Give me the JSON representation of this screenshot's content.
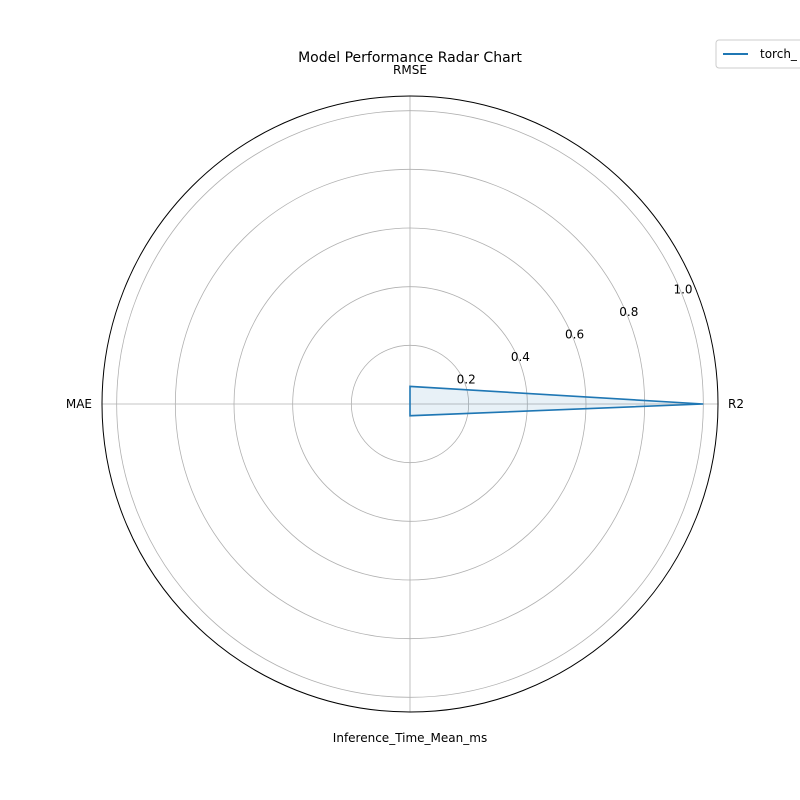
{
  "chart_data": {
    "type": "radar",
    "title": "Model Performance Radar Chart",
    "axes": [
      "R2",
      "RMSE",
      "MAE",
      "Inference_Time_Mean_ms"
    ],
    "rlim": [
      0,
      1.05
    ],
    "r_ticks": [
      0.2,
      0.4,
      0.6,
      0.8,
      1.0
    ],
    "r_tick_labels": [
      "0.2",
      "0.4",
      "0.6",
      "0.8",
      "1.0"
    ],
    "grid": true,
    "legend_position": "top-right",
    "series": [
      {
        "name": "torch_",
        "values": [
          1.0,
          0.06,
          0.0,
          0.04
        ],
        "color": "#1f77b4",
        "fill_color": "#1f77b4",
        "fill_opacity": 0.1
      }
    ]
  }
}
